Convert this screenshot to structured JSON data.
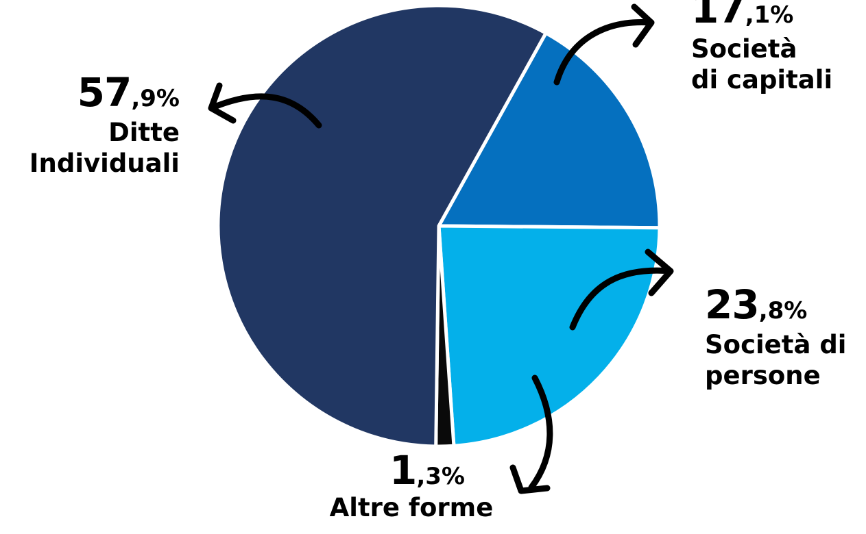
{
  "chart_data": {
    "type": "pie",
    "title": "",
    "slices": [
      {
        "label": "Ditte Individuali",
        "value": 57.9,
        "int_part": "57",
        "dec_part": ",9%",
        "color": "#213763",
        "name_text": "Ditte\nIndividuali"
      },
      {
        "label": "Società di capitali",
        "value": 17.1,
        "int_part": "17",
        "dec_part": ",1%",
        "color": "#0570bf",
        "name_text": "Società\ndi capitali"
      },
      {
        "label": "Società di persone",
        "value": 23.8,
        "int_part": "23",
        "dec_part": ",8%",
        "color": "#04b0ea",
        "name_text": "Società di\npersone"
      },
      {
        "label": "Altre forme",
        "value": 1.3,
        "int_part": "1",
        "dec_part": ",3%",
        "color": "#0a0a0a",
        "name_text": "Altre forme"
      }
    ]
  }
}
